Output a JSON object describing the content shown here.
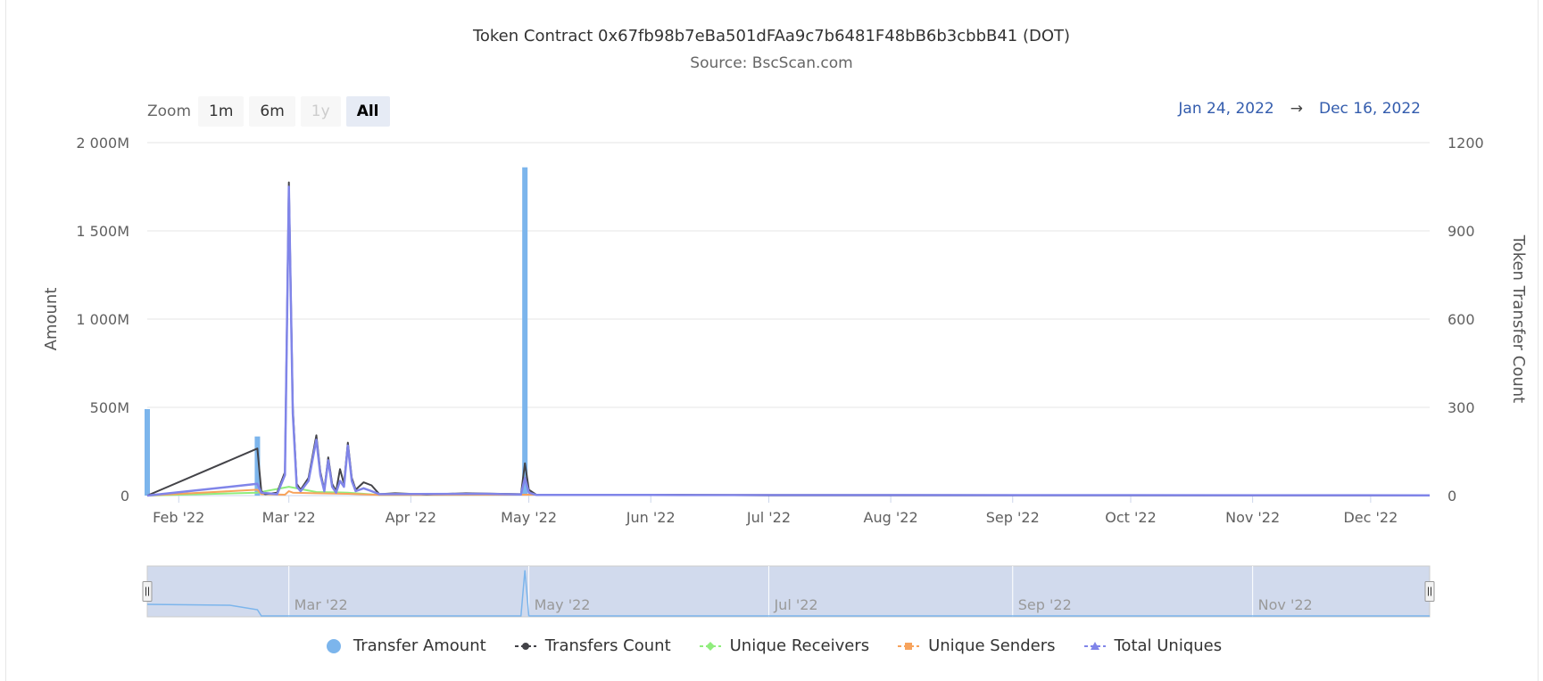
{
  "title": "Token Contract 0x67fb98b7eBa501dFAa9c7b6481F48bB6b3cbbB41 (DOT)",
  "subtitle": "Source: BscScan.com",
  "zoom": {
    "label": "Zoom",
    "buttons": [
      {
        "label": "1m",
        "state": "normal"
      },
      {
        "label": "6m",
        "state": "normal"
      },
      {
        "label": "1y",
        "state": "disabled"
      },
      {
        "label": "All",
        "state": "active"
      }
    ]
  },
  "range": {
    "from": "Jan 24, 2022",
    "arrow": "→",
    "to": "Dec 16, 2022"
  },
  "navigator": {
    "labels": [
      "Mar '22",
      "May '22",
      "Jul '22",
      "Sep '22",
      "Nov '22"
    ]
  },
  "legend": [
    {
      "label": "Transfer Amount",
      "color": "#7cb5ec",
      "symbol": "circle"
    },
    {
      "label": "Transfers Count",
      "color": "#434348",
      "symbol": "line-circle"
    },
    {
      "label": "Unique Receivers",
      "color": "#90ed7d",
      "symbol": "line-diamond"
    },
    {
      "label": "Unique Senders",
      "color": "#f7a35c",
      "symbol": "line-square"
    },
    {
      "label": "Total Uniques",
      "color": "#8085e9",
      "symbol": "line-triangle"
    }
  ],
  "chart_data": {
    "type": "bar+line",
    "x_range": [
      "2022-01-24",
      "2022-12-16"
    ],
    "x_ticks": [
      "Feb '22",
      "Mar '22",
      "Apr '22",
      "May '22",
      "Jun '22",
      "Jul '22",
      "Aug '22",
      "Sep '22",
      "Oct '22",
      "Nov '22",
      "Dec '22"
    ],
    "x_tick_dates": [
      "2022-02-01",
      "2022-03-01",
      "2022-04-01",
      "2022-05-01",
      "2022-06-01",
      "2022-07-01",
      "2022-08-01",
      "2022-09-01",
      "2022-10-01",
      "2022-11-01",
      "2022-12-01"
    ],
    "y_left": {
      "label": "Amount",
      "min": 0,
      "max": 2000000000,
      "ticks": [
        "0",
        "500M",
        "1 000M",
        "1 500M",
        "2 000M"
      ]
    },
    "y_right": {
      "label": "Token Transfer Count",
      "min": 0,
      "max": 1200,
      "ticks": [
        "0",
        "300",
        "600",
        "900",
        "1200"
      ]
    },
    "grid": true,
    "legend_position": "bottom",
    "series": [
      {
        "name": "Transfer Amount",
        "type": "column",
        "axis": "left",
        "points": [
          [
            "2022-01-24",
            490000000
          ],
          [
            "2022-02-21",
            335000000
          ],
          [
            "2022-04-30",
            1860000000
          ]
        ]
      },
      {
        "name": "Transfers Count",
        "type": "line",
        "axis": "right",
        "points": [
          [
            "2022-01-24",
            0
          ],
          [
            "2022-02-21",
            160
          ],
          [
            "2022-02-22",
            15
          ],
          [
            "2022-02-23",
            5
          ],
          [
            "2022-02-26",
            10
          ],
          [
            "2022-02-28",
            80
          ],
          [
            "2022-03-01",
            1065
          ],
          [
            "2022-03-02",
            300
          ],
          [
            "2022-03-03",
            40
          ],
          [
            "2022-03-04",
            20
          ],
          [
            "2022-03-06",
            60
          ],
          [
            "2022-03-08",
            205
          ],
          [
            "2022-03-09",
            80
          ],
          [
            "2022-03-10",
            20
          ],
          [
            "2022-03-11",
            130
          ],
          [
            "2022-03-12",
            40
          ],
          [
            "2022-03-13",
            15
          ],
          [
            "2022-03-14",
            90
          ],
          [
            "2022-03-15",
            40
          ],
          [
            "2022-03-16",
            180
          ],
          [
            "2022-03-17",
            60
          ],
          [
            "2022-03-18",
            20
          ],
          [
            "2022-03-20",
            45
          ],
          [
            "2022-03-22",
            35
          ],
          [
            "2022-03-24",
            5
          ],
          [
            "2022-03-28",
            8
          ],
          [
            "2022-04-05",
            4
          ],
          [
            "2022-04-15",
            8
          ],
          [
            "2022-04-29",
            5
          ],
          [
            "2022-04-30",
            110
          ],
          [
            "2022-05-01",
            20
          ],
          [
            "2022-05-03",
            2
          ],
          [
            "2022-06-01",
            3
          ],
          [
            "2022-07-01",
            1
          ],
          [
            "2022-12-16",
            1
          ]
        ]
      },
      {
        "name": "Unique Receivers",
        "type": "line",
        "axis": "right",
        "points": [
          [
            "2022-01-24",
            0
          ],
          [
            "2022-02-21",
            10
          ],
          [
            "2022-03-01",
            30
          ],
          [
            "2022-03-08",
            12
          ],
          [
            "2022-03-16",
            10
          ],
          [
            "2022-03-24",
            2
          ],
          [
            "2022-04-30",
            3
          ],
          [
            "2022-12-16",
            0
          ]
        ]
      },
      {
        "name": "Unique Senders",
        "type": "line",
        "axis": "right",
        "points": [
          [
            "2022-01-24",
            0
          ],
          [
            "2022-02-21",
            20
          ],
          [
            "2022-02-22",
            5
          ],
          [
            "2022-02-28",
            3
          ],
          [
            "2022-03-01",
            15
          ],
          [
            "2022-03-02",
            10
          ],
          [
            "2022-03-08",
            8
          ],
          [
            "2022-03-16",
            6
          ],
          [
            "2022-03-24",
            2
          ],
          [
            "2022-04-30",
            3
          ],
          [
            "2022-12-16",
            0
          ]
        ]
      },
      {
        "name": "Total Uniques",
        "type": "line",
        "axis": "right",
        "points": [
          [
            "2022-01-24",
            0
          ],
          [
            "2022-02-21",
            40
          ],
          [
            "2022-02-22",
            10
          ],
          [
            "2022-02-26",
            5
          ],
          [
            "2022-02-28",
            70
          ],
          [
            "2022-03-01",
            1050
          ],
          [
            "2022-03-02",
            280
          ],
          [
            "2022-03-03",
            30
          ],
          [
            "2022-03-04",
            15
          ],
          [
            "2022-03-06",
            50
          ],
          [
            "2022-03-08",
            190
          ],
          [
            "2022-03-09",
            70
          ],
          [
            "2022-03-10",
            15
          ],
          [
            "2022-03-11",
            120
          ],
          [
            "2022-03-12",
            30
          ],
          [
            "2022-03-13",
            10
          ],
          [
            "2022-03-14",
            50
          ],
          [
            "2022-03-15",
            30
          ],
          [
            "2022-03-16",
            170
          ],
          [
            "2022-03-17",
            50
          ],
          [
            "2022-03-18",
            15
          ],
          [
            "2022-03-20",
            25
          ],
          [
            "2022-03-22",
            15
          ],
          [
            "2022-03-24",
            5
          ],
          [
            "2022-04-20",
            6
          ],
          [
            "2022-04-29",
            4
          ],
          [
            "2022-04-30",
            60
          ],
          [
            "2022-05-01",
            10
          ],
          [
            "2022-05-03",
            2
          ],
          [
            "2022-06-01",
            2
          ],
          [
            "2022-12-16",
            1
          ]
        ]
      }
    ]
  }
}
